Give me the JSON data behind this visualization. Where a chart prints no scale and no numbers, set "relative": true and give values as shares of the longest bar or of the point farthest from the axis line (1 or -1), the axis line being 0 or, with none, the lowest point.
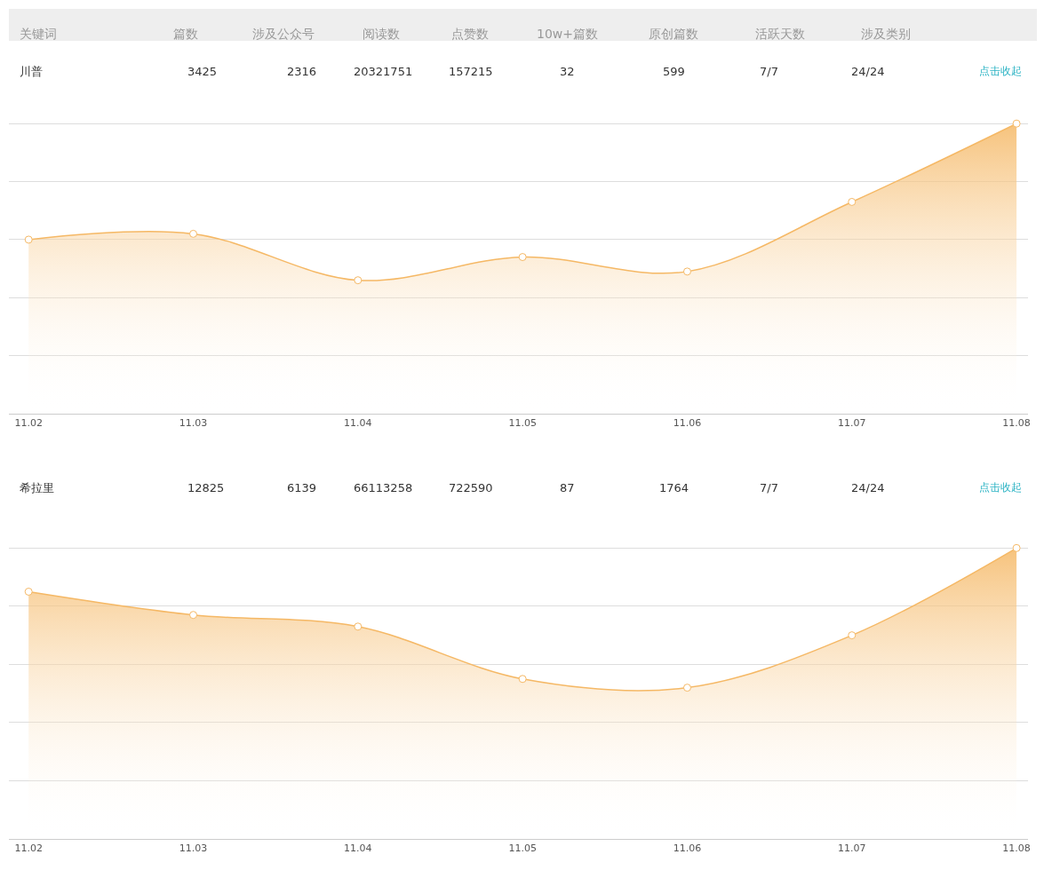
{
  "chart_data": [
    {
      "type": "area",
      "relative": true,
      "title": "川普",
      "categories": [
        "11.02",
        "11.03",
        "11.04",
        "11.05",
        "11.06",
        "11.07",
        "11.08"
      ],
      "series": [
        {
          "color": "#f5b865",
          "values": [
            0.6,
            0.62,
            0.46,
            0.54,
            0.49,
            0.73,
            1
          ]
        }
      ],
      "marker": "circle",
      "grid": "y",
      "annotations": [
        "关键词",
        "篇数",
        "涉及公众号",
        "阅读数",
        "点赞数",
        "10w+篇数",
        "原创篇数",
        "活跃天数",
        "涉及类别",
        "3425",
        "2316",
        "20321751",
        "157215",
        "32",
        "599",
        "7/7",
        "24/24",
        "点击收起"
      ]
    },
    {
      "type": "area",
      "relative": true,
      "title": "希拉里",
      "categories": [
        "11.02",
        "11.03",
        "11.04",
        "11.05",
        "11.06",
        "11.07",
        "11.08"
      ],
      "series": [
        {
          "color": "#f5b865",
          "values": [
            0.85,
            0.77,
            0.73,
            0.55,
            0.52,
            0.7,
            1
          ]
        }
      ],
      "marker": "circle",
      "grid": "y",
      "annotations": [
        "12825",
        "6139",
        "66113258",
        "722590",
        "87",
        "1764",
        "7/7",
        "24/24",
        "点击收起"
      ]
    }
  ]
}
